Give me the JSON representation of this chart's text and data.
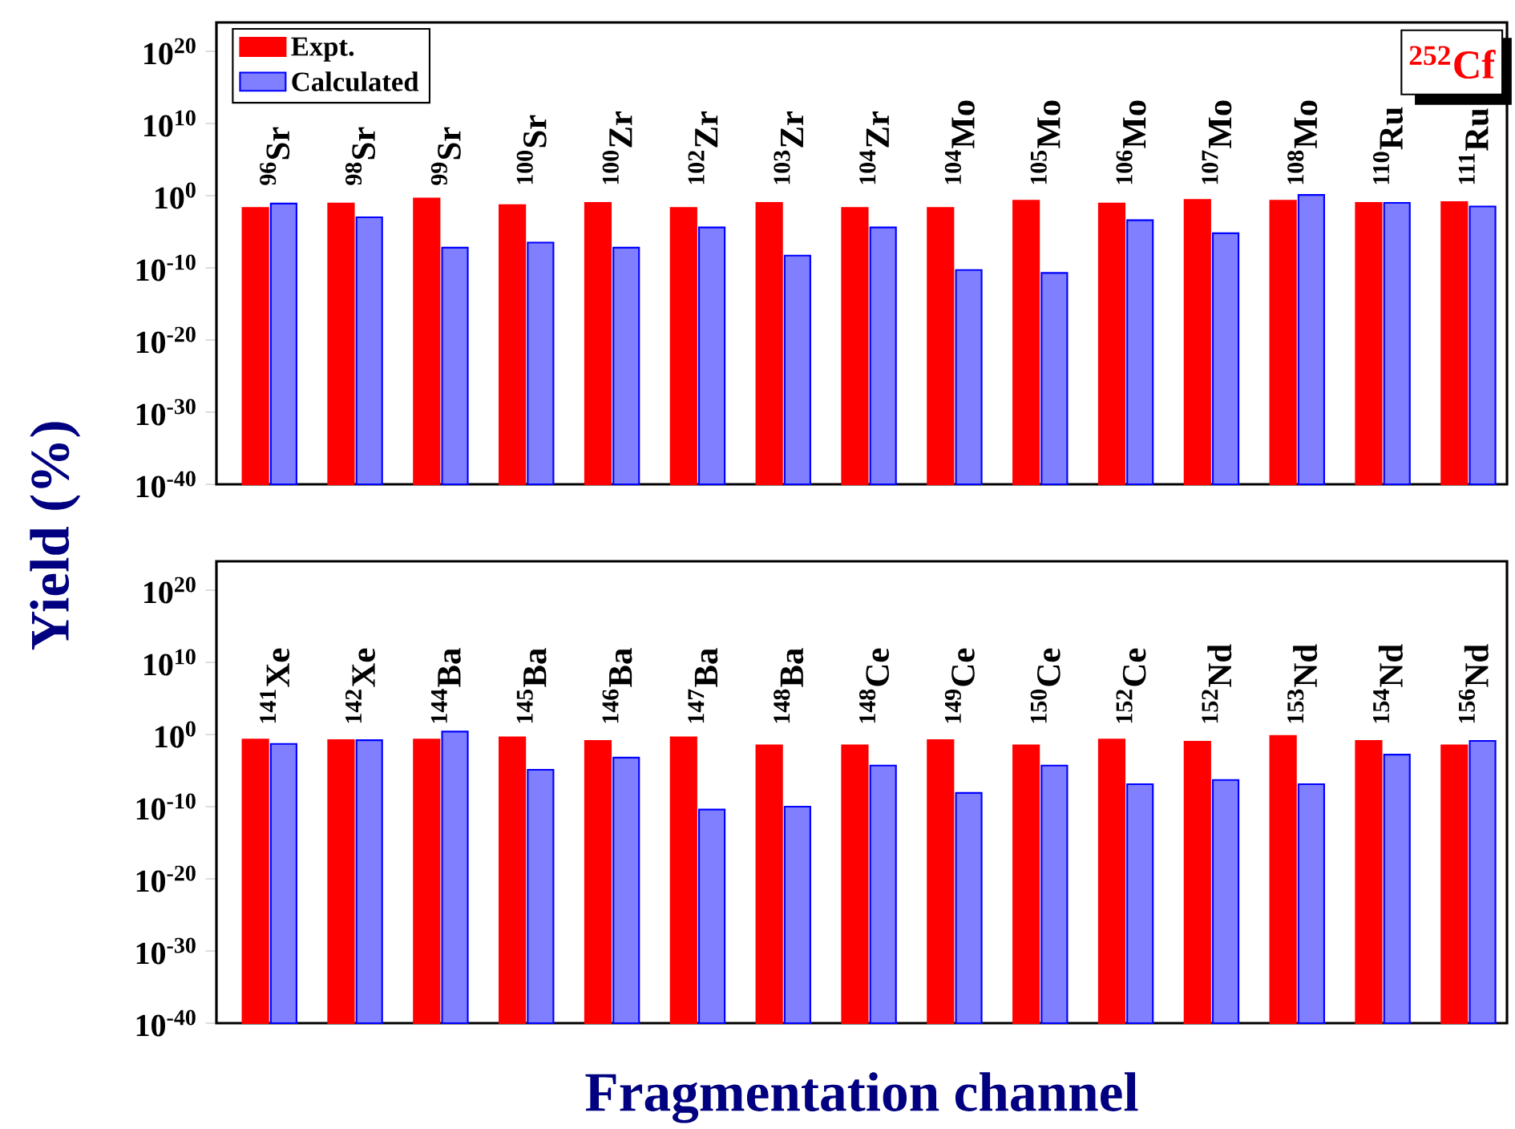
{
  "chart_data": [
    {
      "type": "bar",
      "log": true,
      "legend": "top left",
      "ylabel": "Yield (%)",
      "categories": [
        "$^{96}$Sr",
        "$^{98}$Sr",
        "$^{99}$Sr",
        "$^{100}$Sr",
        "$^{100}$Zr",
        "$^{102}$Zr",
        "$^{103}$Zr",
        "$^{104}$Zr",
        "$^{104}$Mo",
        "$^{105}$Mo",
        "$^{106}$Mo",
        "$^{107}$Mo",
        "$^{108}$Mo",
        "$^{110}$Ru",
        "$^{111}$Ru"
      ],
      "series": [
        {
          "name": "Expt.",
          "color": "#ff0000",
          "values": [
            0.02,
            0.079,
            0.4,
            0.05,
            0.1,
            0.02,
            0.1,
            0.02,
            0.02,
            0.2,
            0.079,
            0.25,
            0.2,
            0.1,
            0.13
          ]
        },
        {
          "name": "Calculated",
          "color": "#0000ff",
          "values": [
            0.079,
            0.001,
            6.3e-08,
            3.2e-07,
            6.3e-08,
            4e-05,
            5e-09,
            4e-05,
            5e-11,
            2e-11,
            0.0004,
            6.3e-06,
            1.26,
            0.1,
            0.032
          ]
        }
      ],
      "ylim": [
        1e-40,
        1e+24
      ],
      "yticks": [
        {
          "value": 1e-40,
          "label": "10$^{-40}$"
        },
        {
          "value": 1e-30,
          "label": "10$^{-30}$"
        },
        {
          "value": 1e-20,
          "label": "10$^{-20}$"
        },
        {
          "value": 1e-10,
          "label": "10$^{-10}$"
        },
        {
          "value": 1,
          "label": "10$^{0}$"
        },
        {
          "value": 10000000000.0,
          "label": "10$^{10}$"
        },
        {
          "value": 1e+20,
          "label": "10$^{20}$"
        }
      ],
      "annotations": [
        "$^{252}$Cf"
      ]
    },
    {
      "type": "bar",
      "log": true,
      "xlabel": "Fragmentation channel",
      "categories": [
        "$^{141}$Xe",
        "$^{142}$Xe",
        "$^{144}$Ba",
        "$^{145}$Ba",
        "$^{146}$Ba",
        "$^{147}$Ba",
        "$^{148}$Ba",
        "$^{148}$Ce",
        "$^{149}$Ce",
        "$^{150}$Ce",
        "$^{152}$Ce",
        "$^{152}$Nd",
        "$^{153}$Nd",
        "$^{154}$Nd",
        "$^{156}$Nd"
      ],
      "series": [
        {
          "color": "#ff0000",
          "values": [
            0.2,
            0.16,
            0.2,
            0.4,
            0.13,
            0.4,
            0.032,
            0.032,
            0.16,
            0.032,
            0.2,
            0.1,
            0.63,
            0.13,
            0.032
          ]
        },
        {
          "color": "#0000ff",
          "values": [
            0.05,
            0.16,
            2.5,
            1.3e-05,
            0.00063,
            4e-11,
            1e-10,
            5e-05,
            8e-09,
            5e-05,
            1.3e-07,
            5e-07,
            1.3e-07,
            0.0016,
            0.13
          ]
        }
      ],
      "ylim": [
        1e-40,
        1e+24
      ],
      "yticks": [
        {
          "value": 1e-40,
          "label": "10$^{-40}$"
        },
        {
          "value": 1e-30,
          "label": "10$^{-30}$"
        },
        {
          "value": 1e-20,
          "label": "10$^{-20}$"
        },
        {
          "value": 1e-10,
          "label": "10$^{-10}$"
        },
        {
          "value": 1,
          "label": "10$^{0}$"
        },
        {
          "value": 10000000000.0,
          "label": "10$^{10}$"
        },
        {
          "value": 1e+20,
          "label": "10$^{20}$"
        }
      ]
    }
  ]
}
